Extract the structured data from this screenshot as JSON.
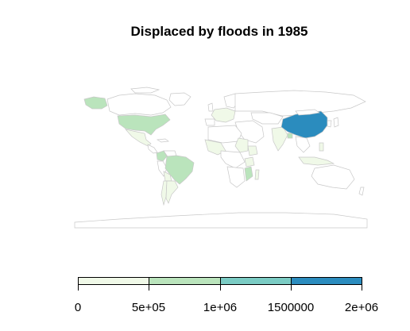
{
  "title": "Displaced by floods in 1985",
  "colors": {
    "land_default": "#ffffff",
    "border": "#c8c8c8",
    "bin1": "#f0f9e8",
    "bin2": "#bae4bc",
    "bin3": "#7bccc4",
    "bin4": "#2b8cbe"
  },
  "legend": {
    "ticks": [
      "0",
      "5e+05",
      "1e+06",
      "1500000",
      "2e+06"
    ],
    "bins": [
      "bin1",
      "bin2",
      "bin3",
      "bin4"
    ]
  },
  "regions": [
    {
      "name": "China",
      "bin": "bin4"
    },
    {
      "name": "United States",
      "bin": "bin2"
    },
    {
      "name": "Alaska",
      "bin": "bin2"
    },
    {
      "name": "Brazil",
      "bin": "bin2"
    },
    {
      "name": "India",
      "bin": "bin1"
    },
    {
      "name": "Mexico",
      "bin": "bin1"
    },
    {
      "name": "Argentina",
      "bin": "bin1"
    },
    {
      "name": "Colombia",
      "bin": "bin2"
    },
    {
      "name": "Bolivia",
      "bin": "bin1"
    },
    {
      "name": "Chile",
      "bin": "bin1"
    },
    {
      "name": "Mozambique",
      "bin": "bin2"
    },
    {
      "name": "Bangladesh",
      "bin": "bin2"
    },
    {
      "name": "Central Europe",
      "bin": "bin1"
    },
    {
      "name": "West Africa",
      "bin": "bin1"
    },
    {
      "name": "Sudan",
      "bin": "bin1"
    },
    {
      "name": "Ethiopia",
      "bin": "bin1"
    },
    {
      "name": "Tanzania",
      "bin": "bin1"
    },
    {
      "name": "Madagascar",
      "bin": "bin1"
    },
    {
      "name": "Philippines",
      "bin": "bin1"
    },
    {
      "name": "Indonesia",
      "bin": "bin1"
    }
  ]
}
